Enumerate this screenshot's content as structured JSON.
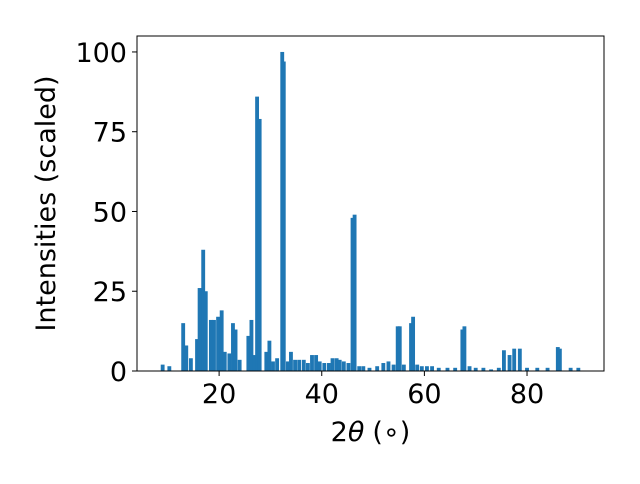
{
  "chart_data": {
    "type": "bar",
    "title": "",
    "xlabel_prefix": "2",
    "xlabel_theta": "θ",
    "xlabel_unit": "(∘)",
    "ylabel": "Intensities (scaled)",
    "xlim": [
      4,
      95
    ],
    "ylim": [
      0,
      105
    ],
    "xticks": [
      20,
      40,
      60,
      80
    ],
    "yticks": [
      0,
      25,
      50,
      75,
      100
    ],
    "grid": false,
    "legend": "none",
    "bar_color": "#1f77b4",
    "x": [
      9.0,
      10.3,
      13.0,
      13.6,
      14.5,
      15.7,
      16.2,
      16.9,
      17.4,
      18.4,
      19.0,
      19.8,
      20.5,
      21.1,
      22.0,
      22.7,
      23.2,
      24.0,
      25.7,
      26.3,
      26.8,
      27.4,
      27.9,
      29.2,
      29.8,
      30.5,
      31.3,
      32.3,
      32.6,
      33.4,
      34.0,
      34.8,
      35.6,
      36.5,
      37.3,
      38.1,
      38.9,
      39.6,
      40.5,
      41.4,
      42.1,
      42.9,
      43.5,
      44.3,
      45.2,
      46.0,
      46.4,
      47.3,
      48.1,
      49.3,
      50.8,
      52.0,
      53.0,
      54.0,
      54.8,
      55.2,
      56.0,
      57.4,
      57.8,
      58.6,
      59.5,
      60.5,
      61.5,
      62.8,
      64.5,
      66.0,
      67.4,
      67.8,
      68.8,
      70.0,
      71.5,
      73.0,
      74.5,
      75.5,
      76.6,
      77.5,
      78.6,
      80.0,
      82.0,
      84.0,
      86.0,
      86.4,
      88.5,
      90.0
    ],
    "values": [
      2,
      1.5,
      15,
      8,
      4,
      10,
      26,
      38,
      25,
      16,
      16,
      17,
      19,
      6,
      5.5,
      15,
      13,
      3.5,
      11,
      16,
      5,
      86,
      79,
      6,
      9.5,
      3,
      4,
      100,
      97,
      3,
      6,
      3.5,
      3.5,
      3.5,
      2.5,
      5,
      5,
      3,
      2.5,
      2.5,
      4,
      4,
      3.5,
      3,
      2.5,
      48,
      49,
      1.5,
      1.5,
      1,
      1.5,
      2.5,
      3,
      2,
      14,
      14,
      2,
      15,
      17,
      2,
      1.5,
      1.5,
      1.5,
      1,
      1,
      1,
      13,
      14,
      1.5,
      1,
      1,
      0.5,
      1,
      6.5,
      5,
      7,
      7,
      1,
      1,
      1,
      7.5,
      7,
      1,
      1
    ]
  }
}
